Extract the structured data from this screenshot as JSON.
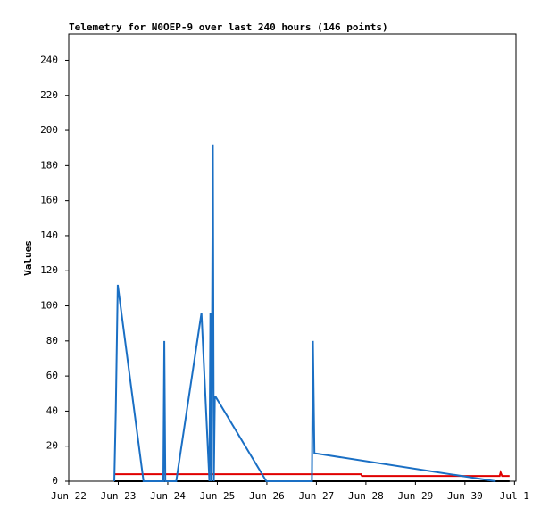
{
  "chart_data": {
    "type": "line",
    "title": "Telemetry for N0OEP-9 over last 240 hours (146 points)",
    "y_label": "Values",
    "xlim": [
      0,
      9.03
    ],
    "xticks": [
      {
        "value": 0,
        "label": "Jun 22"
      },
      {
        "value": 1,
        "label": "Jun 23"
      },
      {
        "value": 2,
        "label": "Jun 24"
      },
      {
        "value": 3,
        "label": "Jun 25"
      },
      {
        "value": 4,
        "label": "Jun 26"
      },
      {
        "value": 5,
        "label": "Jun 27"
      },
      {
        "value": 6,
        "label": "Jun 28"
      },
      {
        "value": 7,
        "label": "Jun 29"
      },
      {
        "value": 8,
        "label": "Jun 30"
      },
      {
        "value": 9,
        "label": "Jul 1"
      }
    ],
    "ylim": [
      0,
      255
    ],
    "yticks": [
      0,
      20,
      40,
      60,
      80,
      100,
      120,
      140,
      160,
      180,
      200,
      220,
      240
    ],
    "series": [
      {
        "color": "#000000",
        "x": [
          0.92,
          8.9
        ],
        "values": [
          0,
          0
        ]
      },
      {
        "color": "#e00000",
        "x": [
          0.92,
          5.9,
          5.92,
          8.7,
          8.72,
          8.75,
          8.9
        ],
        "values": [
          4,
          4,
          3,
          3,
          5,
          3,
          3
        ]
      },
      {
        "color": "#1a6fc4",
        "x": [
          0.92,
          0.95,
          0.99,
          1.51,
          1.91,
          1.93,
          1.95,
          2.17,
          2.68,
          2.84,
          2.86,
          2.88,
          2.91,
          2.93,
          2.95,
          2.97,
          3.99,
          4.91,
          4.93,
          4.96,
          8.62
        ],
        "values": [
          0,
          40,
          112,
          0,
          0,
          80,
          0,
          0,
          96,
          0,
          96,
          0,
          192,
          0,
          48,
          48,
          0,
          0,
          80,
          16,
          0
        ]
      }
    ]
  }
}
